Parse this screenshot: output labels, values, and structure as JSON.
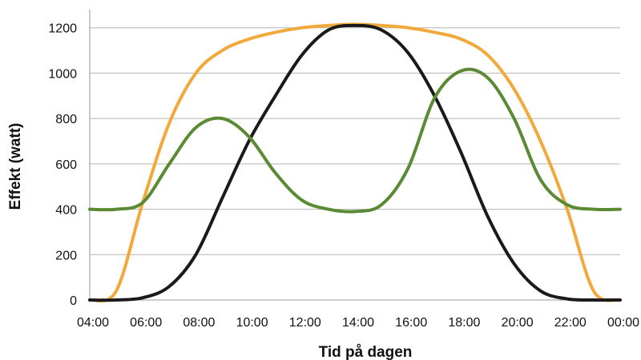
{
  "chart_data": {
    "type": "line",
    "title": "",
    "xlabel": "Tid på dagen",
    "ylabel": "Effekt  (watt)",
    "x_unit": "hours",
    "xlim": [
      4,
      24
    ],
    "ylim": [
      0,
      1200
    ],
    "x_ticks": [
      4,
      6,
      8,
      10,
      12,
      14,
      16,
      18,
      20,
      22,
      24
    ],
    "x_tick_labels": [
      "04:00",
      "06:00",
      "08:00",
      "10:00",
      "12:00",
      "14:00",
      "16:00",
      "18:00",
      "20:00",
      "22:00",
      "00:00"
    ],
    "y_ticks": [
      0,
      200,
      400,
      600,
      800,
      1000,
      1200
    ],
    "y_tick_labels": [
      "0",
      "200",
      "400",
      "600",
      "800",
      "1000",
      "1200"
    ],
    "grid": "horizontal",
    "legend": "none",
    "series": [
      {
        "color": "#f2a93b",
        "x": [
          4,
          5,
          6,
          7,
          8,
          9,
          10,
          11,
          12,
          13,
          14,
          15,
          16,
          17,
          18,
          19,
          20,
          21,
          22,
          23,
          24
        ],
        "values": [
          0,
          40,
          430,
          780,
          1000,
          1100,
          1150,
          1180,
          1200,
          1210,
          1215,
          1210,
          1200,
          1180,
          1150,
          1080,
          930,
          700,
          400,
          40,
          0
        ]
      },
      {
        "color": "#1a1a1a",
        "x": [
          4,
          5,
          6,
          7,
          8,
          9,
          10,
          11,
          12,
          13,
          14,
          15,
          16,
          17,
          18,
          19,
          20,
          21,
          22,
          23,
          24
        ],
        "values": [
          0,
          0,
          10,
          60,
          200,
          450,
          700,
          900,
          1080,
          1190,
          1210,
          1190,
          1090,
          900,
          650,
          370,
          160,
          40,
          5,
          0,
          0
        ]
      },
      {
        "color": "#5a8a34",
        "x": [
          4,
          5,
          6,
          7,
          8,
          9,
          10,
          11,
          12,
          13,
          14,
          15,
          16,
          17,
          18,
          19,
          20,
          21,
          22,
          23,
          24
        ],
        "values": [
          400,
          400,
          430,
          600,
          760,
          800,
          720,
          560,
          440,
          400,
          390,
          420,
          580,
          890,
          1010,
          980,
          800,
          530,
          420,
          400,
          400
        ]
      }
    ]
  }
}
